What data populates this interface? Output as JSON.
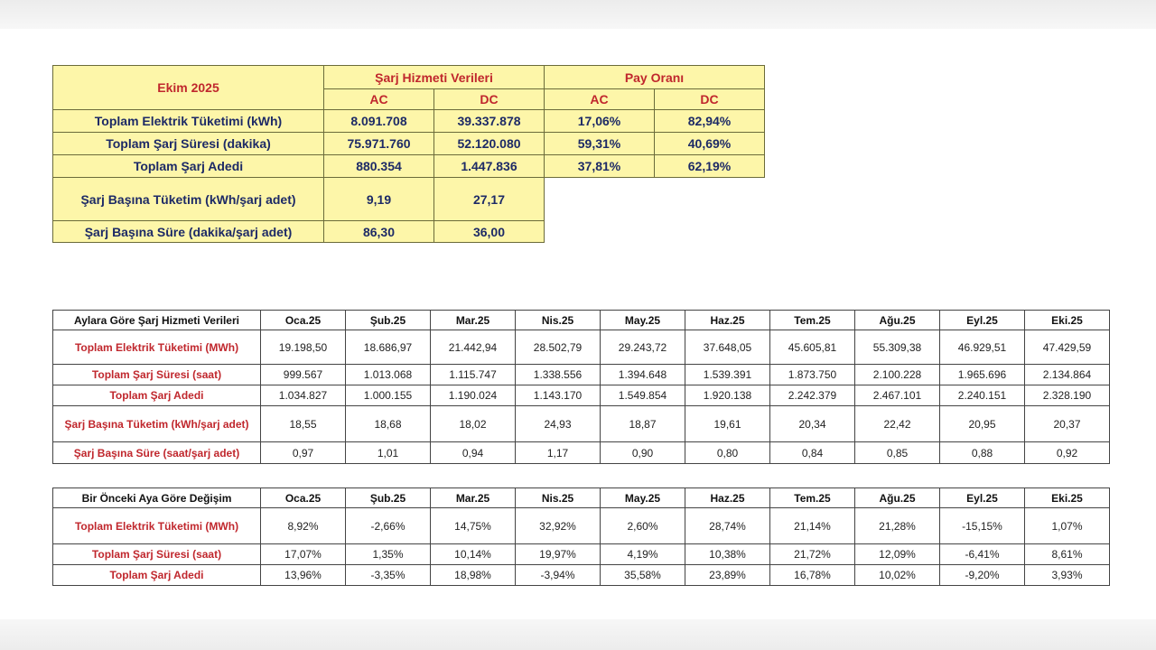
{
  "summary": {
    "period": "Ekim 2025",
    "group1": "Şarj Hizmeti Verileri",
    "group2": "Pay Oranı",
    "sub": [
      "AC",
      "DC",
      "AC",
      "DC"
    ],
    "rows": [
      {
        "label": "Toplam Elektrik Tüketimi (kWh)",
        "values": [
          "8.091.708",
          "39.337.878",
          "17,06%",
          "82,94%"
        ]
      },
      {
        "label": "Toplam Şarj Süresi (dakika)",
        "values": [
          "75.971.760",
          "52.120.080",
          "59,31%",
          "40,69%"
        ]
      },
      {
        "label": "Toplam Şarj Adedi",
        "values": [
          "880.354",
          "1.447.836",
          "37,81%",
          "62,19%"
        ]
      },
      {
        "label": "Şarj Başına Tüketim (kWh/şarj adet)",
        "values": [
          "9,19",
          "27,17"
        ]
      },
      {
        "label": "Şarj Başına Süre (dakika/şarj adet)",
        "values": [
          "86,30",
          "36,00"
        ]
      }
    ]
  },
  "monthly": {
    "header": "Aylara Göre Şarj Hizmeti Verileri",
    "months": [
      "Oca.25",
      "Şub.25",
      "Mar.25",
      "Nis.25",
      "May.25",
      "Haz.25",
      "Tem.25",
      "Ağu.25",
      "Eyl.25",
      "Eki.25"
    ],
    "rows": [
      {
        "label": "Toplam Elektrik Tüketimi (MWh)",
        "values": [
          "19.198,50",
          "18.686,97",
          "21.442,94",
          "28.502,79",
          "29.243,72",
          "37.648,05",
          "45.605,81",
          "55.309,38",
          "46.929,51",
          "47.429,59"
        ]
      },
      {
        "label": "Toplam Şarj Süresi (saat)",
        "values": [
          "999.567",
          "1.013.068",
          "1.115.747",
          "1.338.556",
          "1.394.648",
          "1.539.391",
          "1.873.750",
          "2.100.228",
          "1.965.696",
          "2.134.864"
        ]
      },
      {
        "label": "Toplam Şarj Adedi",
        "values": [
          "1.034.827",
          "1.000.155",
          "1.190.024",
          "1.143.170",
          "1.549.854",
          "1.920.138",
          "2.242.379",
          "2.467.101",
          "2.240.151",
          "2.328.190"
        ]
      },
      {
        "label": "Şarj Başına Tüketim (kWh/şarj adet)",
        "values": [
          "18,55",
          "18,68",
          "18,02",
          "24,93",
          "18,87",
          "19,61",
          "20,34",
          "22,42",
          "20,95",
          "20,37"
        ]
      },
      {
        "label": "Şarj Başına Süre (saat/şarj adet)",
        "values": [
          "0,97",
          "1,01",
          "0,94",
          "1,17",
          "0,90",
          "0,80",
          "0,84",
          "0,85",
          "0,88",
          "0,92"
        ]
      }
    ]
  },
  "change": {
    "header": "Bir Önceki Aya Göre Değişim",
    "months": [
      "Oca.25",
      "Şub.25",
      "Mar.25",
      "Nis.25",
      "May.25",
      "Haz.25",
      "Tem.25",
      "Ağu.25",
      "Eyl.25",
      "Eki.25"
    ],
    "rows": [
      {
        "label": "Toplam Elektrik Tüketimi (MWh)",
        "values": [
          "8,92%",
          "-2,66%",
          "14,75%",
          "32,92%",
          "2,60%",
          "28,74%",
          "21,14%",
          "21,28%",
          "-15,15%",
          "1,07%"
        ]
      },
      {
        "label": "Toplam Şarj Süresi (saat)",
        "values": [
          "17,07%",
          "1,35%",
          "10,14%",
          "19,97%",
          "4,19%",
          "10,38%",
          "21,72%",
          "12,09%",
          "-6,41%",
          "8,61%"
        ]
      },
      {
        "label": "Toplam Şarj Adedi",
        "values": [
          "13,96%",
          "-3,35%",
          "18,98%",
          "-3,94%",
          "35,58%",
          "23,89%",
          "16,78%",
          "10,02%",
          "-9,20%",
          "3,93%"
        ]
      }
    ]
  }
}
